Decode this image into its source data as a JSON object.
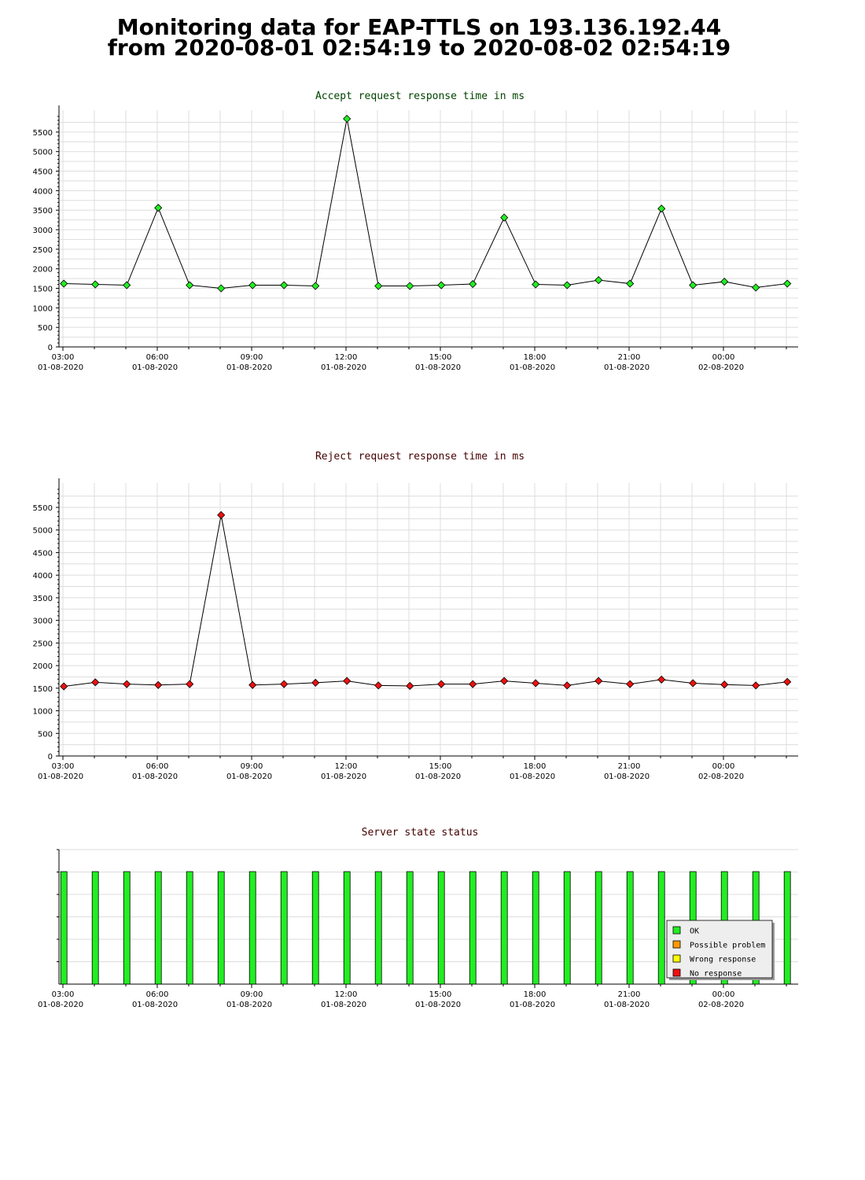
{
  "page_title": {
    "line1": "Monitoring data for EAP-TTLS on 193.136.192.44",
    "line2": "from 2020-08-01 02:54:19 to 2020-08-02 02:54:19"
  },
  "colors": {
    "accept_title": "#004400",
    "reject_title": "#440000",
    "status_title": "#440000",
    "accept_marker": "#22ee22",
    "reject_marker": "#ee1111",
    "ok": "#22ee22",
    "possible_problem": "#ff9900",
    "wrong_response": "#ffff00",
    "no_response": "#ee1111",
    "grid": "#dddddd"
  },
  "chart_data": [
    {
      "id": "accept",
      "type": "line",
      "title": "Accept request response time in ms",
      "x_tick_labels": [
        {
          "hour": 3,
          "time": "03:00",
          "date": "01-08-2020"
        },
        {
          "hour": 6,
          "time": "06:00",
          "date": "01-08-2020"
        },
        {
          "hour": 9,
          "time": "09:00",
          "date": "01-08-2020"
        },
        {
          "hour": 12,
          "time": "12:00",
          "date": "01-08-2020"
        },
        {
          "hour": 15,
          "time": "15:00",
          "date": "01-08-2020"
        },
        {
          "hour": 18,
          "time": "18:00",
          "date": "01-08-2020"
        },
        {
          "hour": 21,
          "time": "21:00",
          "date": "01-08-2020"
        },
        {
          "hour": 24,
          "time": "00:00",
          "date": "02-08-2020"
        }
      ],
      "x_range_hours": [
        3,
        26.5
      ],
      "ylim": [
        0,
        5900
      ],
      "y_ticks": [
        0,
        500,
        1000,
        1500,
        2000,
        2500,
        3000,
        3500,
        4000,
        4500,
        5000,
        5500
      ],
      "grid": true,
      "series": [
        {
          "x_hours": [
            3.03,
            4.03,
            5.03,
            6.03,
            7.03,
            8.03,
            9.03,
            10.03,
            11.03,
            12.03,
            13.03,
            14.03,
            15.03,
            16.03,
            17.03,
            18.03,
            19.03,
            20.03,
            21.03,
            22.03,
            23.03,
            24.03,
            25.03,
            26.03
          ],
          "values": [
            1620,
            1600,
            1580,
            3560,
            1580,
            1500,
            1580,
            1580,
            1560,
            5840,
            1560,
            1560,
            1580,
            1610,
            3310,
            1600,
            1580,
            1710,
            1620,
            3540,
            1580,
            1670,
            1520,
            1620
          ]
        }
      ]
    },
    {
      "id": "reject",
      "type": "line",
      "title": "Reject request response time in ms",
      "x_tick_labels": [
        {
          "hour": 3,
          "time": "03:00",
          "date": "01-08-2020"
        },
        {
          "hour": 6,
          "time": "06:00",
          "date": "01-08-2020"
        },
        {
          "hour": 9,
          "time": "09:00",
          "date": "01-08-2020"
        },
        {
          "hour": 12,
          "time": "12:00",
          "date": "01-08-2020"
        },
        {
          "hour": 15,
          "time": "15:00",
          "date": "01-08-2020"
        },
        {
          "hour": 18,
          "time": "18:00",
          "date": "01-08-2020"
        },
        {
          "hour": 21,
          "time": "21:00",
          "date": "01-08-2020"
        },
        {
          "hour": 24,
          "time": "00:00",
          "date": "02-08-2020"
        }
      ],
      "x_range_hours": [
        3,
        26.5
      ],
      "ylim": [
        0,
        5900
      ],
      "y_ticks": [
        0,
        500,
        1000,
        1500,
        2000,
        2500,
        3000,
        3500,
        4000,
        4500,
        5000,
        5500
      ],
      "grid": true,
      "series": [
        {
          "x_hours": [
            3.03,
            4.03,
            5.03,
            6.03,
            7.03,
            8.03,
            9.03,
            10.03,
            11.03,
            12.03,
            13.03,
            14.03,
            15.03,
            16.03,
            17.03,
            18.03,
            19.03,
            20.03,
            21.03,
            22.03,
            23.03,
            24.03,
            25.03,
            26.03
          ],
          "values": [
            1540,
            1630,
            1590,
            1570,
            1590,
            5330,
            1570,
            1590,
            1620,
            1660,
            1560,
            1550,
            1590,
            1590,
            1660,
            1610,
            1560,
            1660,
            1590,
            1690,
            1610,
            1580,
            1560,
            1640
          ]
        }
      ]
    },
    {
      "id": "status",
      "type": "bar",
      "title": "Server state status",
      "x_tick_labels": [
        {
          "hour": 3,
          "time": "03:00",
          "date": "01-08-2020"
        },
        {
          "hour": 6,
          "time": "06:00",
          "date": "01-08-2020"
        },
        {
          "hour": 9,
          "time": "09:00",
          "date": "01-08-2020"
        },
        {
          "hour": 12,
          "time": "12:00",
          "date": "01-08-2020"
        },
        {
          "hour": 15,
          "time": "15:00",
          "date": "01-08-2020"
        },
        {
          "hour": 18,
          "time": "18:00",
          "date": "01-08-2020"
        },
        {
          "hour": 21,
          "time": "21:00",
          "date": "01-08-2020"
        },
        {
          "hour": 24,
          "time": "00:00",
          "date": "02-08-2020"
        }
      ],
      "x_range_hours": [
        3,
        26.5
      ],
      "legend_position": "bottom-right",
      "legend": [
        {
          "label": "OK",
          "state": "ok"
        },
        {
          "label": "Possible problem",
          "state": "possible_problem"
        },
        {
          "label": "Wrong response",
          "state": "wrong_response"
        },
        {
          "label": "No response",
          "state": "no_response"
        }
      ],
      "series": [
        {
          "x_hours": [
            3.03,
            4.03,
            5.03,
            6.03,
            7.03,
            8.03,
            9.03,
            10.03,
            11.03,
            12.03,
            13.03,
            14.03,
            15.03,
            16.03,
            17.03,
            18.03,
            19.03,
            20.03,
            21.03,
            22.03,
            23.03,
            24.03,
            25.03,
            26.03
          ],
          "states": [
            "ok",
            "ok",
            "ok",
            "ok",
            "ok",
            "ok",
            "ok",
            "ok",
            "ok",
            "ok",
            "ok",
            "ok",
            "ok",
            "ok",
            "ok",
            "ok",
            "ok",
            "ok",
            "ok",
            "ok",
            "ok",
            "ok",
            "ok",
            "ok"
          ]
        }
      ]
    }
  ]
}
